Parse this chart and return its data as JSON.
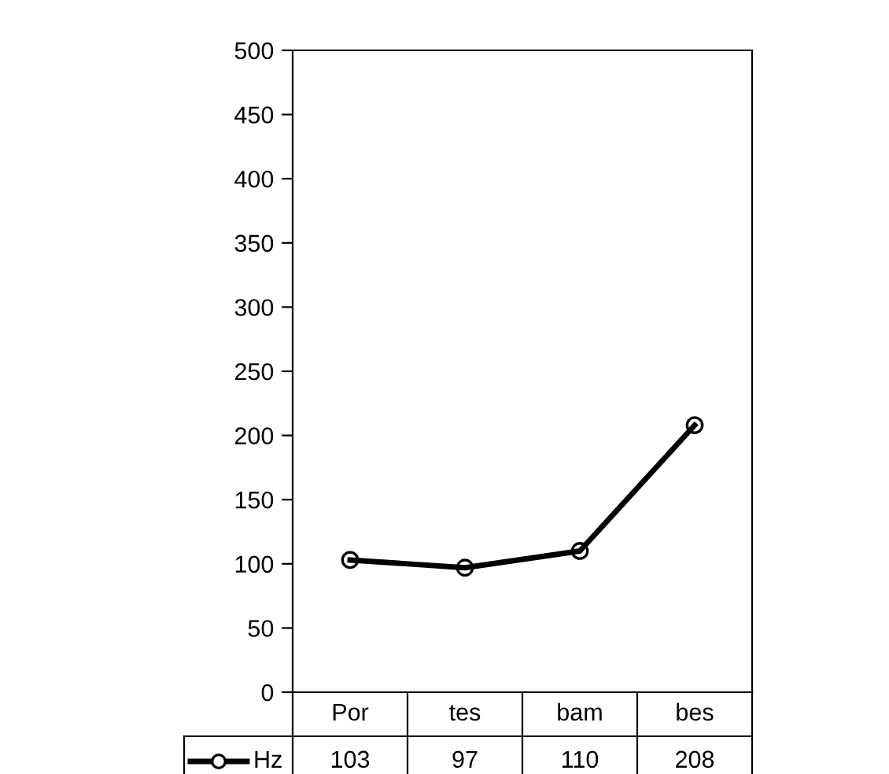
{
  "chart_data": {
    "type": "line",
    "categories": [
      "Por",
      "tes",
      "bam",
      "bes"
    ],
    "series": [
      {
        "name": "Hz",
        "color": "#000000",
        "values": [
          103,
          97,
          110,
          208
        ]
      }
    ],
    "ylim": [
      0,
      500
    ],
    "yticks": [
      0,
      50,
      100,
      150,
      200,
      250,
      300,
      350,
      400,
      450,
      500
    ],
    "marker": "circle",
    "line_style": "solid",
    "grid": false,
    "legend": "bottom",
    "data_labels": true
  }
}
